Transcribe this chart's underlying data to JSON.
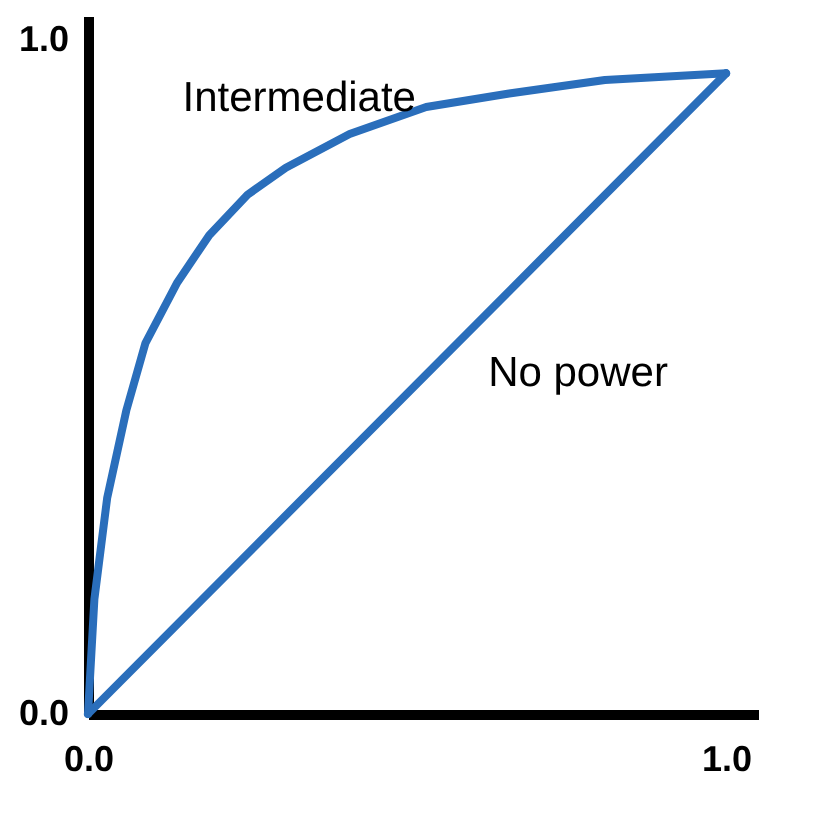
{
  "chart_data": {
    "type": "line",
    "xlim": [
      0,
      1.05
    ],
    "ylim": [
      0,
      1.035
    ],
    "xticks": [
      {
        "value": 0,
        "label": "0.0"
      },
      {
        "value": 1,
        "label": "1.0"
      }
    ],
    "yticks": [
      {
        "value": 0,
        "label": "0.0"
      },
      {
        "value": 1,
        "label": "1.0"
      }
    ],
    "grid": false,
    "marker": "none",
    "line_style": "solid",
    "series": [
      {
        "name": "Intermediate",
        "color": "#2a6ebb",
        "x": [
          0,
          0.01,
          0.03,
          0.06,
          0.09,
          0.14,
          0.19,
          0.25,
          0.31,
          0.41,
          0.53,
          0.66,
          0.81,
          1.0
        ],
        "values": [
          0,
          0.17,
          0.32,
          0.45,
          0.55,
          0.64,
          0.71,
          0.77,
          0.81,
          0.86,
          0.9,
          0.92,
          0.94,
          0.95
        ]
      },
      {
        "name": "No power",
        "color": "#2a6ebb",
        "x": [
          0,
          1.0
        ],
        "values": [
          0,
          0.95
        ]
      }
    ]
  }
}
